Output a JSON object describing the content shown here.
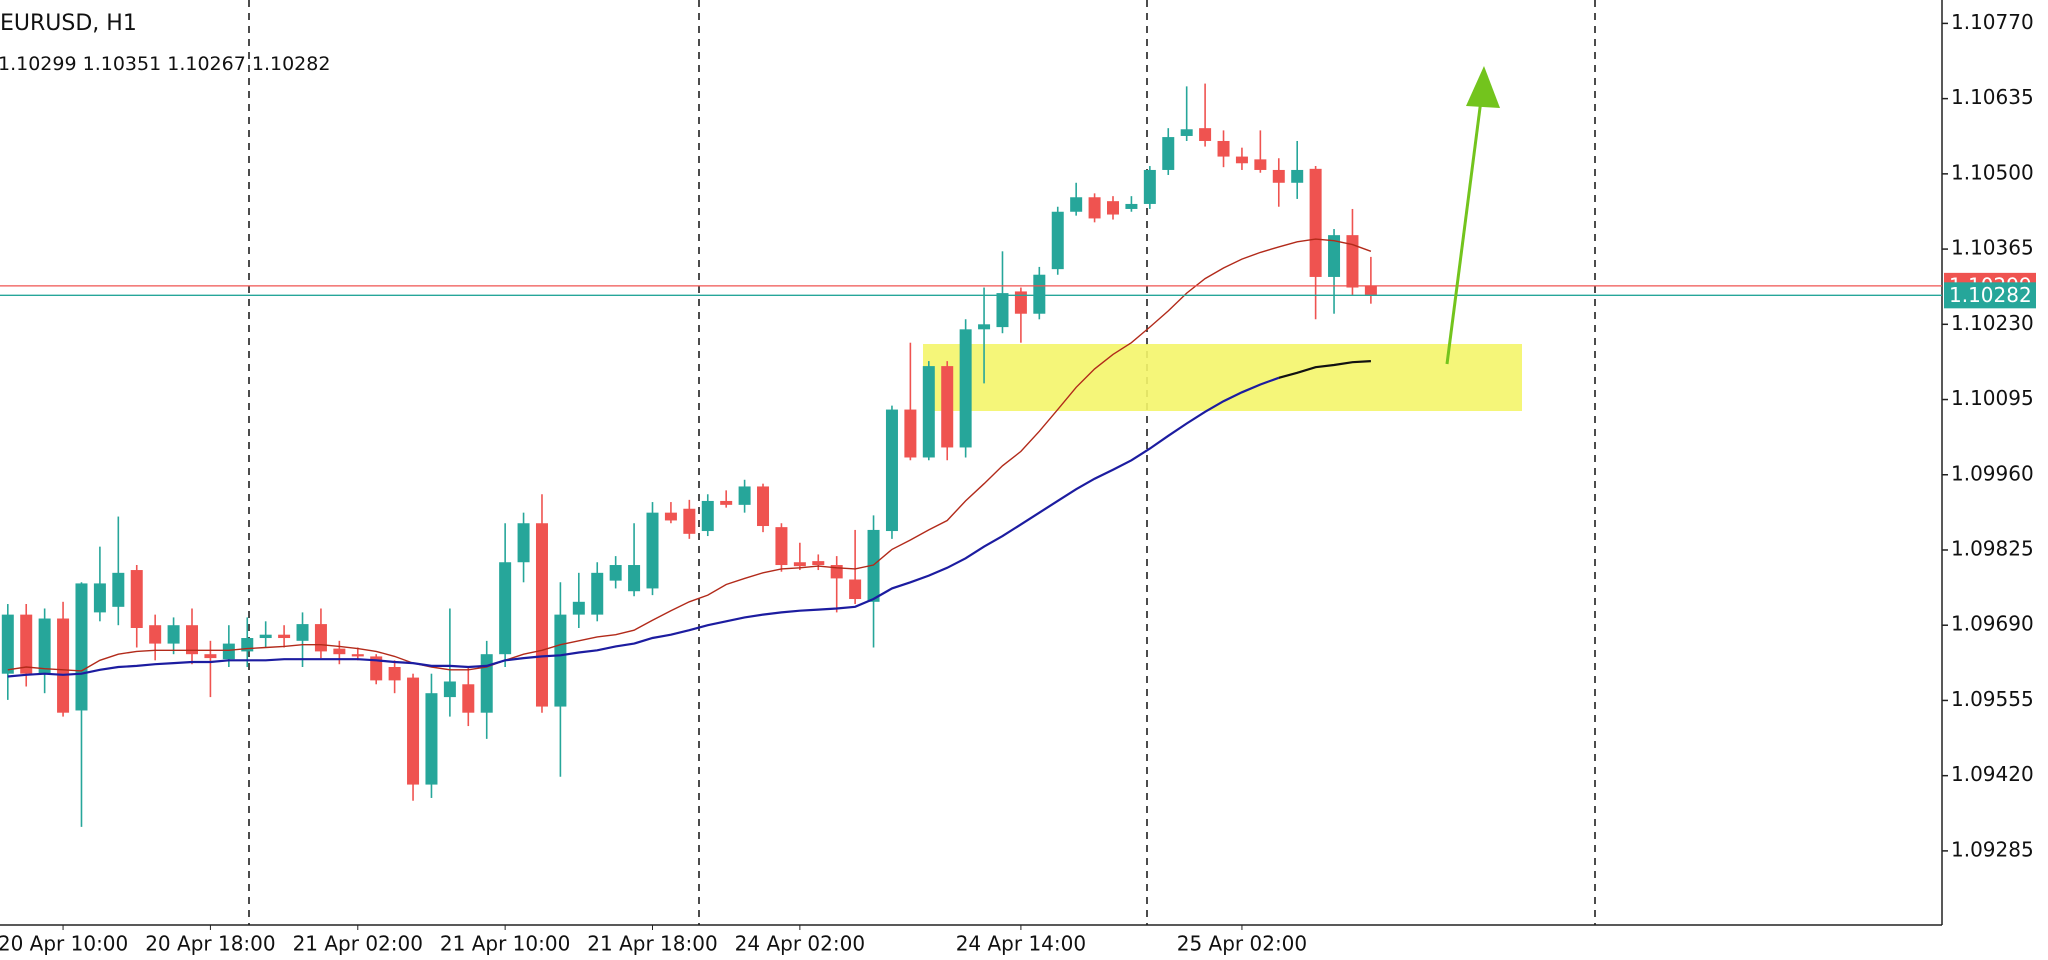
{
  "chart_data": {
    "type": "candlestick",
    "title": "EURUSD, H1",
    "categories": [
      null,
      null,
      null,
      "20 Apr 10:00",
      null,
      null,
      null,
      null,
      null,
      null,
      null,
      "20 Apr 18:00",
      null,
      null,
      null,
      null,
      null,
      null,
      null,
      "21 Apr 02:00",
      null,
      null,
      null,
      null,
      null,
      null,
      null,
      "21 Apr 10:00",
      null,
      null,
      null,
      null,
      null,
      null,
      null,
      "21 Apr 18:00",
      null,
      null,
      null,
      null,
      null,
      null,
      null,
      "24 Apr 02:00",
      null,
      null,
      null,
      null,
      null,
      null,
      null,
      null,
      null,
      null,
      null,
      "24 Apr 14:00",
      null,
      null,
      null,
      null,
      null,
      null,
      null,
      null,
      null,
      null,
      null,
      "25 Apr 02:00",
      null,
      null,
      null,
      null,
      null,
      null,
      null
    ],
    "open": [
      1.09603,
      1.09709,
      1.09603,
      1.09702,
      1.09537,
      1.09713,
      1.09723,
      1.09789,
      1.0969,
      1.09657,
      1.0969,
      1.09638,
      1.09629,
      1.09643,
      1.09667,
      1.09673,
      1.09662,
      1.09692,
      1.09648,
      1.09638,
      1.09634,
      1.09615,
      1.09596,
      1.09404,
      1.09561,
      1.09584,
      1.09533,
      1.09638,
      1.09803,
      1.09873,
      1.09544,
      1.09709,
      1.09709,
      1.0977,
      1.09751,
      1.09756,
      1.09892,
      1.09899,
      1.09859,
      1.09913,
      1.09906,
      1.09939,
      1.09866,
      1.09803,
      1.09805,
      1.09798,
      1.09772,
      1.09732,
      1.09859,
      1.10077,
      1.09991,
      1.10155,
      1.10009,
      1.10221,
      1.10225,
      1.10289,
      1.10249,
      1.10329,
      1.10432,
      1.10458,
      1.10451,
      1.10437,
      1.10446,
      1.10507,
      1.10568,
      1.10582,
      1.10559,
      1.10531,
      1.10526,
      1.10507,
      1.10484,
      1.10509,
      1.10315,
      1.1039,
      1.10299
    ],
    "high": [
      1.09728,
      1.09728,
      1.0972,
      1.09732,
      1.09767,
      1.09831,
      1.09885,
      1.09798,
      1.09709,
      1.09704,
      1.0972,
      1.09662,
      1.0969,
      1.09704,
      1.09697,
      1.0969,
      1.09713,
      1.0972,
      1.09662,
      1.0965,
      1.09638,
      1.09627,
      1.09603,
      1.09603,
      1.0972,
      1.09615,
      1.09662,
      1.09873,
      1.09892,
      1.09925,
      1.09767,
      1.09784,
      1.09803,
      1.09814,
      1.09873,
      1.09911,
      1.09911,
      1.09915,
      1.09925,
      1.09932,
      1.09951,
      1.09944,
      1.09873,
      1.09838,
      1.09817,
      1.09814,
      1.09861,
      1.09887,
      1.10084,
      1.10197,
      1.10164,
      1.10164,
      1.10239,
      1.10296,
      1.10361,
      1.10296,
      1.10333,
      1.10441,
      1.10484,
      1.10465,
      1.1046,
      1.1046,
      1.10514,
      1.10582,
      1.10657,
      1.10662,
      1.10578,
      1.10547,
      1.10578,
      1.10528,
      1.10559,
      1.10514,
      1.10401,
      1.10437,
      1.10351
    ],
    "low": [
      1.09556,
      1.0958,
      1.09568,
      1.09526,
      1.09328,
      1.09697,
      1.0969,
      1.0965,
      1.09627,
      1.09638,
      1.0962,
      1.09561,
      1.09615,
      1.09615,
      1.0965,
      1.0965,
      1.09615,
      1.09631,
      1.0962,
      1.09627,
      1.09584,
      1.09568,
      1.09375,
      1.0938,
      1.09526,
      1.09509,
      1.09486,
      1.09615,
      1.09767,
      1.09533,
      1.09418,
      1.09685,
      1.09697,
      1.09756,
      1.09742,
      1.09744,
      1.09873,
      1.09845,
      1.0985,
      1.09901,
      1.09892,
      1.09857,
      1.09786,
      1.09789,
      1.09789,
      1.09713,
      1.09728,
      1.0965,
      1.09845,
      1.09986,
      1.09986,
      1.09986,
      1.09991,
      1.10124,
      1.10214,
      1.10197,
      1.10239,
      1.10319,
      1.10425,
      1.10413,
      1.10418,
      1.10432,
      1.10437,
      1.10498,
      1.10559,
      1.10549,
      1.10512,
      1.10507,
      1.10502,
      1.10441,
      1.10455,
      1.10239,
      1.10249,
      1.10282,
      1.10267
    ],
    "close": [
      1.09709,
      1.09603,
      1.09702,
      1.09533,
      1.09765,
      1.09765,
      1.09784,
      1.09685,
      1.09657,
      1.0969,
      1.09638,
      1.09631,
      1.09657,
      1.09667,
      1.09673,
      1.09667,
      1.09692,
      1.09643,
      1.09638,
      1.09634,
      1.09591,
      1.09591,
      1.09404,
      1.09568,
      1.09589,
      1.09533,
      1.09638,
      1.09803,
      1.09873,
      1.09544,
      1.09709,
      1.09732,
      1.09784,
      1.09798,
      1.09798,
      1.09892,
      1.09878,
      1.09854,
      1.09913,
      1.09906,
      1.09939,
      1.09868,
      1.09798,
      1.09796,
      1.09798,
      1.09774,
      1.09737,
      1.09861,
      1.10077,
      1.09991,
      1.10155,
      1.10009,
      1.10221,
      1.1023,
      1.10286,
      1.10249,
      1.10319,
      1.10432,
      1.10458,
      1.1042,
      1.10427,
      1.10446,
      1.10507,
      1.10566,
      1.1058,
      1.10559,
      1.10531,
      1.10519,
      1.10507,
      1.10484,
      1.10507,
      1.10315,
      1.1039,
      1.10296,
      1.10282
    ],
    "up_color": "#26a69a",
    "down_color": "#ef5350",
    "overlays": [
      {
        "color": "#b22a1a",
        "values": [
          1.0961,
          1.09615,
          1.09612,
          1.0961,
          1.09608,
          1.09627,
          1.09638,
          1.09643,
          1.09645,
          1.09645,
          1.09645,
          1.09645,
          1.09645,
          1.09648,
          1.0965,
          1.09652,
          1.09655,
          1.09655,
          1.09652,
          1.09648,
          1.09643,
          1.09634,
          1.09622,
          1.09615,
          1.0961,
          1.0961,
          1.09615,
          1.09627,
          1.09638,
          1.09645,
          1.09655,
          1.09662,
          1.09669,
          1.09673,
          1.09681,
          1.09699,
          1.09716,
          1.09732,
          1.09744,
          1.09763,
          1.09774,
          1.09784,
          1.09791,
          1.09793,
          1.09796,
          1.09793,
          1.09791,
          1.09798,
          1.09826,
          1.09843,
          1.09861,
          1.09878,
          1.09913,
          1.09944,
          1.09976,
          1.10002,
          1.10038,
          1.10077,
          1.10117,
          1.1015,
          1.10176,
          1.10197,
          1.10225,
          1.10254,
          1.10286,
          1.10312,
          1.10331,
          1.10347,
          1.10359,
          1.10369,
          1.10378,
          1.10383,
          1.1038,
          1.10373,
          1.10361
        ]
      },
      {
        "color": "#1c1ca0",
        "values": [
          1.09598,
          1.09601,
          1.09603,
          1.09601,
          1.09603,
          1.0961,
          1.09615,
          1.09617,
          1.0962,
          1.09622,
          1.09624,
          1.09624,
          1.09627,
          1.09627,
          1.09627,
          1.09629,
          1.09629,
          1.09629,
          1.09629,
          1.09629,
          1.09627,
          1.09624,
          1.09622,
          1.09617,
          1.09617,
          1.09615,
          1.09617,
          1.09627,
          1.09631,
          1.09634,
          1.09636,
          1.09641,
          1.09645,
          1.09652,
          1.09657,
          1.09667,
          1.09673,
          1.09681,
          1.0969,
          1.09697,
          1.09704,
          1.09709,
          1.09713,
          1.09716,
          1.09718,
          1.0972,
          1.09723,
          1.09737,
          1.09756,
          1.09767,
          1.09779,
          1.09793,
          1.0981,
          1.09831,
          1.0985,
          1.09871,
          1.09892,
          1.09913,
          1.09934,
          1.09953,
          1.09969,
          1.09986,
          1.10007,
          1.1003,
          1.10052,
          1.10073,
          1.10092,
          1.10108,
          1.10122,
          1.10134,
          null,
          null,
          null,
          null,
          null
        ]
      },
      {
        "color": "#111111",
        "values": [
          null,
          null,
          null,
          null,
          null,
          null,
          null,
          null,
          null,
          null,
          null,
          null,
          null,
          null,
          null,
          null,
          null,
          null,
          null,
          null,
          null,
          null,
          null,
          null,
          null,
          null,
          null,
          null,
          null,
          null,
          null,
          null,
          null,
          null,
          null,
          null,
          null,
          null,
          null,
          null,
          null,
          null,
          null,
          null,
          null,
          null,
          null,
          null,
          null,
          null,
          null,
          null,
          null,
          null,
          null,
          null,
          null,
          null,
          null,
          null,
          null,
          null,
          null,
          null,
          null,
          null,
          null,
          null,
          null,
          1.10134,
          1.10143,
          1.10153,
          1.10157,
          1.10162,
          1.10164
        ]
      }
    ],
    "ask": {
      "value": 1.10299,
      "color": "#ef5350"
    },
    "bid": {
      "value": 1.10282,
      "color": "#26a69a"
    },
    "ylim": [
      1.09152,
      1.10812
    ],
    "yticks": [
      {
        "value": 1.1077,
        "label": "1.10770"
      },
      1.10635,
      {
        "value": 1.105,
        "label": "1.10500"
      },
      1.10365,
      {
        "value": 1.1023,
        "label": "1.10230"
      },
      1.10095,
      {
        "value": 1.0996,
        "label": "1.09960"
      },
      1.09825,
      {
        "value": 1.0969,
        "label": "1.09690"
      },
      1.09555,
      {
        "value": 1.0942,
        "label": "1.09420"
      },
      1.09285
    ]
  }
}
